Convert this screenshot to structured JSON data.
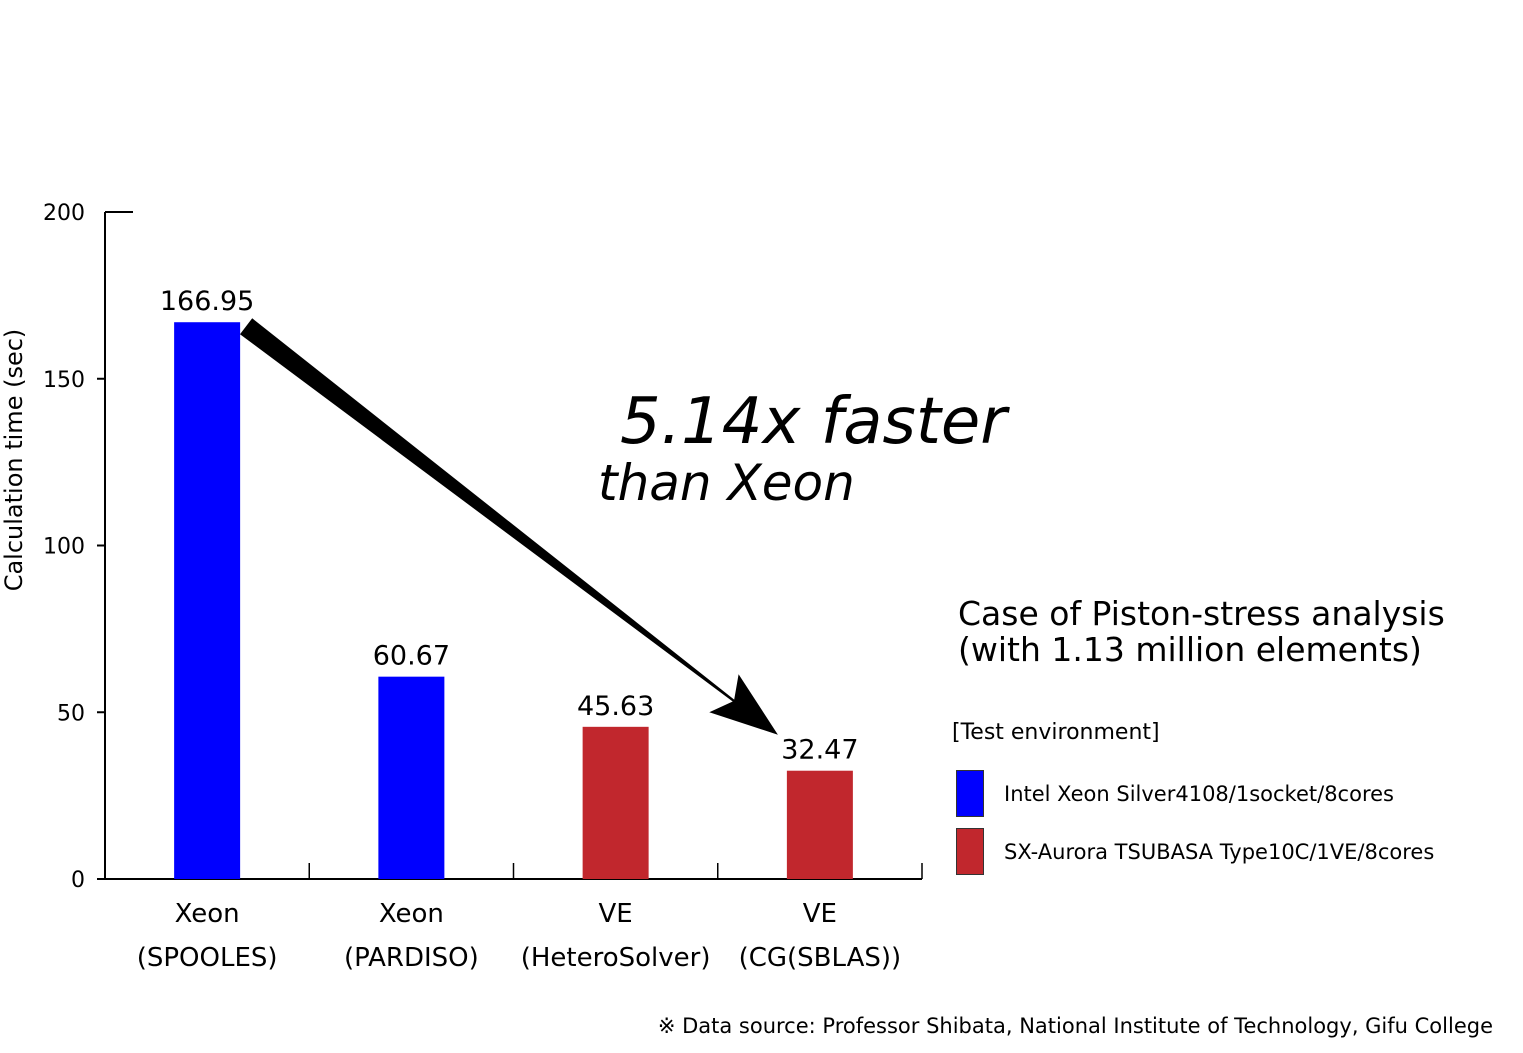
{
  "chart_data": {
    "type": "bar",
    "categories": [
      [
        "Xeon",
        "(SPOOLES)"
      ],
      [
        "Xeon",
        "(PARDISO)"
      ],
      [
        "VE",
        "(HeteroSolver)"
      ],
      [
        "VE",
        "(CG(SBLAS))"
      ]
    ],
    "values": [
      166.95,
      60.67,
      45.63,
      32.47
    ],
    "value_labels": [
      "166.95",
      "60.67",
      "45.63",
      "32.47"
    ],
    "series_index": [
      0,
      0,
      1,
      1
    ],
    "ylabel": "Calculation time (sec)",
    "ylim": [
      0,
      200
    ],
    "yticks": [
      0,
      50,
      100,
      150,
      200
    ],
    "grid": false,
    "legend_position": "right",
    "annotation": {
      "line1": "5.14x faster",
      "line2": "than Xeon"
    }
  },
  "legend": {
    "title": "[Test environment]",
    "items": [
      {
        "label": "Intel Xeon Silver4108/1socket/8cores",
        "color": "#0000ff"
      },
      {
        "label": "SX-Aurora TSUBASA Type10C/1VE/8cores",
        "color": "#c1272d"
      }
    ]
  },
  "case": {
    "line1": "Case of Piston-stress analysis",
    "line2": "(with 1.13 million elements)"
  },
  "source": "※ Data source: Professor Shibata, National Institute of Technology, Gifu College"
}
